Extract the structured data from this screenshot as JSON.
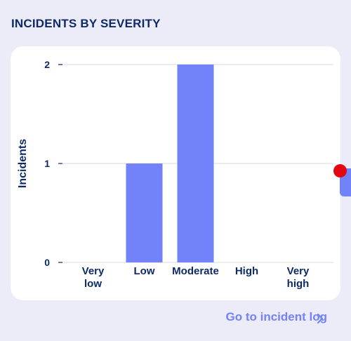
{
  "panel": {
    "title": "INCIDENTS BY SEVERITY",
    "link_label": "Go to incident log"
  },
  "colors": {
    "background": "#ecebf8",
    "card": "#ffffff",
    "bar": "#7282f8",
    "text": "#0d2a66",
    "grid": "#d9d9d9",
    "marker": "#e30613",
    "link": "#7282f8"
  },
  "icons": {
    "link_chevron": "chevron-right-icon"
  },
  "chart_data": {
    "type": "bar",
    "categories": [
      [
        "Very",
        "low"
      ],
      [
        "Low"
      ],
      [
        "Moderate"
      ],
      [
        "High"
      ],
      [
        "Very",
        "high"
      ]
    ],
    "values": [
      0,
      1,
      2,
      0,
      0
    ],
    "ylabel": "Incidents",
    "xlabel": "",
    "ylim": [
      0,
      2
    ],
    "yticks": [
      "0",
      "1",
      "2"
    ],
    "grid": true,
    "legend": "none"
  }
}
